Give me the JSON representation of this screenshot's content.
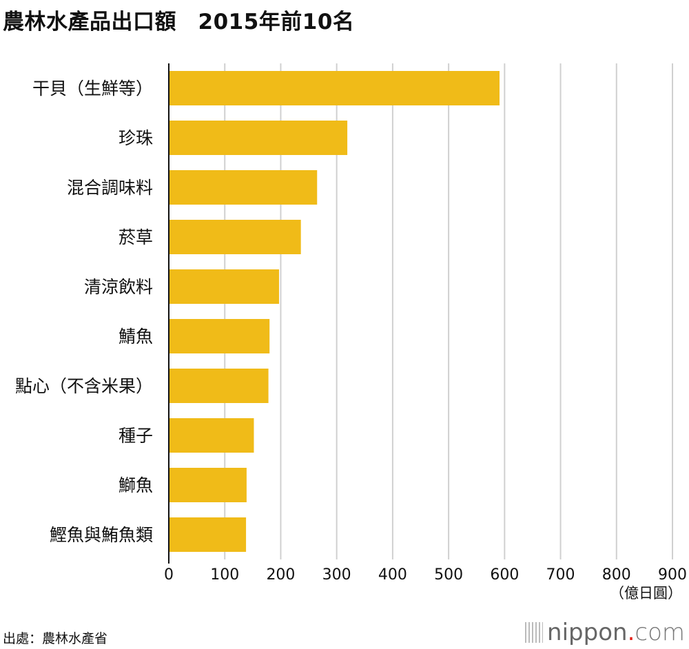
{
  "chart_data": {
    "type": "bar",
    "orientation": "horizontal",
    "title": "農林水產品出口額　2015年前10名",
    "categories": [
      "干貝（生鮮等）",
      "珍珠",
      "混合調味料",
      "菸草",
      "清涼飲料",
      "鯖魚",
      "點心（不含米果）",
      "種子",
      "鰤魚",
      "鰹魚與鮪魚類"
    ],
    "values": [
      591,
      319,
      265,
      236,
      197,
      180,
      178,
      152,
      139,
      138
    ],
    "xlim": [
      0,
      900
    ],
    "xticks": [
      "0",
      "100",
      "200",
      "300",
      "400",
      "500",
      "600",
      "700",
      "800",
      "900"
    ],
    "unit": "（億日圓）",
    "grid": true,
    "bar_color": "#f0bb18",
    "grid_color": "#d0d0d0"
  },
  "source": "出處：農林水產省",
  "logo": {
    "name": "nippon",
    "dot": ".",
    "suffix": "com"
  }
}
